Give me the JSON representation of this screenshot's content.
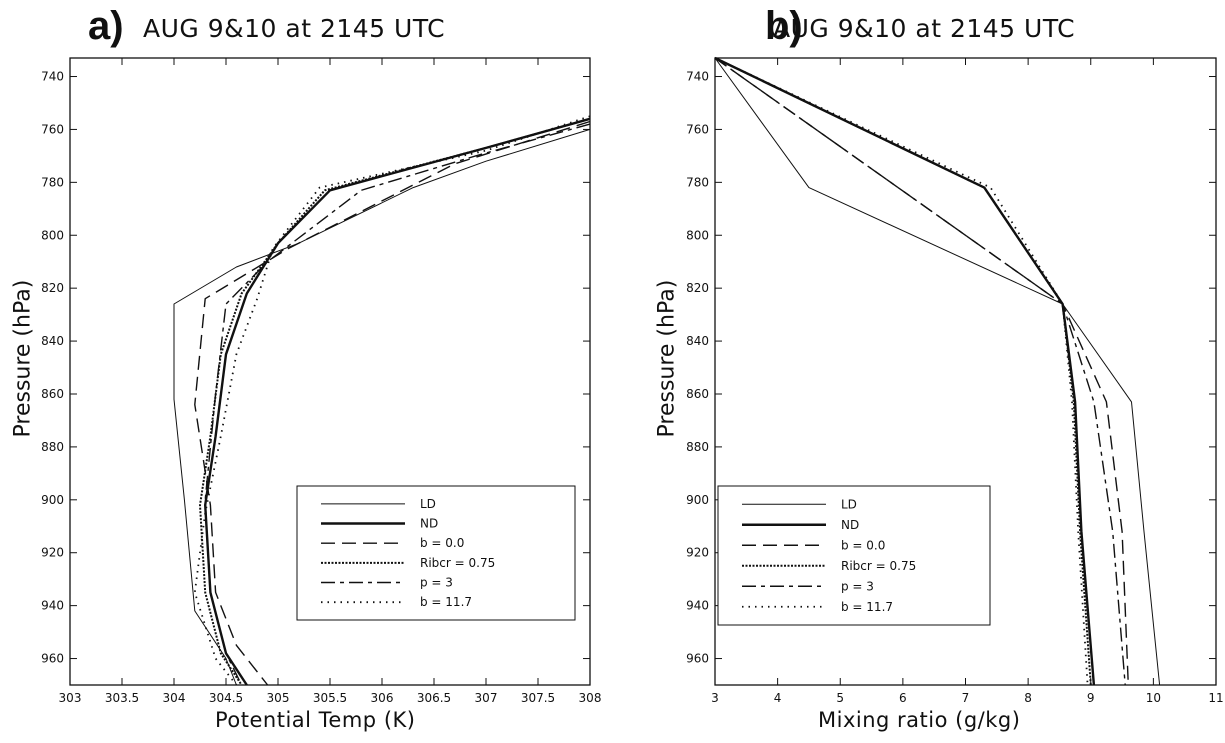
{
  "chart_data": [
    {
      "type": "line",
      "panel_letter": "a)",
      "title": "AUG 9&10 at 2145 UTC",
      "xlabel": "Potential Temp (K)",
      "ylabel": "Pressure (hPa)",
      "xlim": [
        303,
        308
      ],
      "ylim": [
        970,
        733
      ],
      "y_inverted": true,
      "x_ticks": [
        "303",
        "303.5",
        "304",
        "304.5",
        "305",
        "305.5",
        "306",
        "306.5",
        "307",
        "307.5",
        "308"
      ],
      "y_ticks": [
        "740",
        "760",
        "780",
        "800",
        "820",
        "840",
        "860",
        "880",
        "900",
        "920",
        "940",
        "960"
      ],
      "grid": false,
      "legend_position": "lower-right",
      "series": [
        {
          "name": "LD",
          "style": "thin-solid",
          "points": [
            [
              308.0,
              760
            ],
            [
              307.0,
              772
            ],
            [
              306.3,
              782
            ],
            [
              305.2,
              803
            ],
            [
              304.6,
              812
            ],
            [
              304.0,
              826
            ],
            [
              304.0,
              862
            ],
            [
              304.1,
              900
            ],
            [
              304.2,
              942
            ],
            [
              304.5,
              960
            ],
            [
              304.6,
              970
            ]
          ]
        },
        {
          "name": "ND",
          "style": "thick-solid",
          "points": [
            [
              308.0,
              756
            ],
            [
              307.0,
              767
            ],
            [
              305.5,
              783
            ],
            [
              305.0,
              803
            ],
            [
              304.7,
              822
            ],
            [
              304.5,
              845
            ],
            [
              304.4,
              876
            ],
            [
              304.3,
              902
            ],
            [
              304.35,
              935
            ],
            [
              304.5,
              958
            ],
            [
              304.7,
              970
            ]
          ]
        },
        {
          "name": "b = 0.0",
          "style": "long-dash",
          "points": [
            [
              308.0,
              757
            ],
            [
              306.7,
              773
            ],
            [
              306.0,
              787
            ],
            [
              305.1,
              805
            ],
            [
              304.3,
              824
            ],
            [
              304.2,
              864
            ],
            [
              304.35,
              902
            ],
            [
              304.4,
              935
            ],
            [
              304.6,
              955
            ],
            [
              304.9,
              970
            ]
          ]
        },
        {
          "name": "Ribcr = 0.75",
          "style": "dense-dot",
          "points": [
            [
              308.0,
              756
            ],
            [
              307.0,
              767
            ],
            [
              305.45,
              783
            ],
            [
              305.0,
              803
            ],
            [
              304.65,
              822
            ],
            [
              304.45,
              845
            ],
            [
              304.35,
              876
            ],
            [
              304.25,
              902
            ],
            [
              304.3,
              935
            ],
            [
              304.45,
              958
            ],
            [
              304.65,
              970
            ]
          ]
        },
        {
          "name": "p = 3",
          "style": "dash-dot",
          "points": [
            [
              308.0,
              758
            ],
            [
              306.9,
              770
            ],
            [
              305.8,
              783
            ],
            [
              304.9,
              810
            ],
            [
              304.5,
              826
            ],
            [
              304.4,
              860
            ],
            [
              304.3,
              900
            ],
            [
              304.35,
              935
            ],
            [
              304.5,
              958
            ],
            [
              304.65,
              970
            ]
          ]
        },
        {
          "name": "b = 11.7",
          "style": "sparse-dot",
          "points": [
            [
              308.0,
              755
            ],
            [
              307.0,
              768
            ],
            [
              305.4,
              782
            ],
            [
              304.95,
              805
            ],
            [
              304.8,
              824
            ],
            [
              304.6,
              845
            ],
            [
              304.45,
              876
            ],
            [
              304.3,
              905
            ],
            [
              304.2,
              935
            ],
            [
              304.4,
              960
            ],
            [
              304.6,
              970
            ]
          ]
        }
      ]
    },
    {
      "type": "line",
      "panel_letter": "b)",
      "title": "AUG 9&10 at 2145 UTC",
      "xlabel": "Mixing ratio (g/kg)",
      "ylabel": "Pressure (hPa)",
      "xlim": [
        3,
        11
      ],
      "ylim": [
        970,
        733
      ],
      "y_inverted": true,
      "x_ticks": [
        "3",
        "4",
        "5",
        "6",
        "7",
        "8",
        "9",
        "10",
        "11"
      ],
      "y_ticks": [
        "740",
        "760",
        "780",
        "800",
        "820",
        "840",
        "860",
        "880",
        "900",
        "920",
        "940",
        "960"
      ],
      "grid": false,
      "legend_position": "lower-left",
      "series": [
        {
          "name": "LD",
          "style": "thin-solid",
          "points": [
            [
              3.0,
              733
            ],
            [
              4.5,
              782
            ],
            [
              8.55,
              826
            ],
            [
              9.65,
              863
            ],
            [
              9.85,
              912
            ],
            [
              10.1,
              970
            ]
          ]
        },
        {
          "name": "ND",
          "style": "thick-solid",
          "points": [
            [
              3.0,
              733
            ],
            [
              7.3,
              782
            ],
            [
              8.55,
              826
            ],
            [
              8.75,
              863
            ],
            [
              8.85,
              912
            ],
            [
              9.05,
              970
            ]
          ]
        },
        {
          "name": "b = 0.0",
          "style": "long-dash",
          "points": [
            [
              3.0,
              733
            ],
            [
              8.55,
              826
            ],
            [
              9.25,
              863
            ],
            [
              9.5,
              912
            ],
            [
              9.6,
              970
            ]
          ]
        },
        {
          "name": "Ribcr = 0.75",
          "style": "dense-dot",
          "points": [
            [
              3.0,
              733
            ],
            [
              7.3,
              782
            ],
            [
              8.55,
              826
            ],
            [
              8.73,
              863
            ],
            [
              8.83,
              912
            ],
            [
              9.0,
              970
            ]
          ]
        },
        {
          "name": "p = 3",
          "style": "dash-dot",
          "points": [
            [
              3.0,
              733
            ],
            [
              8.55,
              826
            ],
            [
              9.05,
              863
            ],
            [
              9.35,
              912
            ],
            [
              9.55,
              970
            ]
          ]
        },
        {
          "name": "b = 11.7",
          "style": "sparse-dot",
          "points": [
            [
              3.0,
              733
            ],
            [
              7.4,
              782
            ],
            [
              8.55,
              826
            ],
            [
              8.7,
              863
            ],
            [
              8.8,
              912
            ],
            [
              8.95,
              970
            ]
          ]
        }
      ]
    }
  ]
}
